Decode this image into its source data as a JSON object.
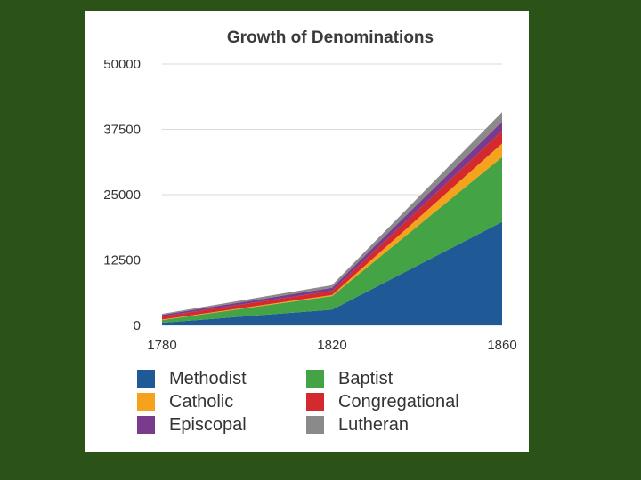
{
  "chart_data": {
    "type": "area",
    "stacked": true,
    "title": "Growth of Denominations",
    "x": [
      "1780",
      "1820",
      "1860"
    ],
    "ylim": [
      0,
      50000
    ],
    "yticks": [
      "50000",
      "37500",
      "25000",
      "12500",
      "0"
    ],
    "ytick_values": [
      50000,
      37500,
      25000,
      12500,
      0
    ],
    "grid": true,
    "legend_position": "bottom",
    "series": [
      {
        "name": "Methodist",
        "color": "#1f5a96",
        "values": [
          500,
          3000,
          19800
        ]
      },
      {
        "name": "Baptist",
        "color": "#43a345",
        "values": [
          500,
          2600,
          12400
        ]
      },
      {
        "name": "Catholic",
        "color": "#f5a21c",
        "values": [
          100,
          200,
          2600
        ]
      },
      {
        "name": "Congregational",
        "color": "#d42a2e",
        "values": [
          600,
          800,
          2400
        ]
      },
      {
        "name": "Episcopal",
        "color": "#7b3b8c",
        "values": [
          300,
          600,
          1800
        ]
      },
      {
        "name": "Lutheran",
        "color": "#8a8a8a",
        "values": [
          200,
          500,
          1800
        ]
      }
    ],
    "legend_order": [
      "Methodist",
      "Baptist",
      "Catholic",
      "Congregational",
      "Episcopal",
      "Lutheran"
    ]
  }
}
